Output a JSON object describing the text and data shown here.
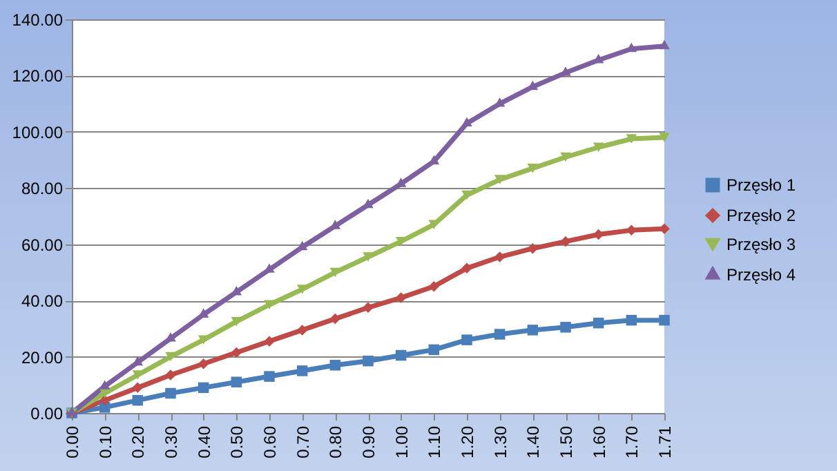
{
  "chart_data": {
    "type": "line",
    "categories": [
      "0.00",
      "0.10",
      "0.20",
      "0.30",
      "0.40",
      "0.50",
      "0.60",
      "0.70",
      "0.80",
      "0.90",
      "1.00",
      "1.10",
      "1.20",
      "1.30",
      "1.40",
      "1.50",
      "1.60",
      "1.70",
      "1.71"
    ],
    "series": [
      {
        "name": "Przęsło 1",
        "color": "#4a7ebb",
        "marker": "square",
        "values": [
          0,
          2,
          4.5,
          7,
          9,
          11,
          13,
          15,
          17,
          18.5,
          20.5,
          22.5,
          26,
          28,
          29.5,
          30.5,
          32,
          33,
          33
        ]
      },
      {
        "name": "Przęsło 2",
        "color": "#be4b48",
        "marker": "diamond",
        "values": [
          0,
          4.5,
          9,
          13.5,
          17.5,
          21.5,
          25.5,
          29.5,
          33.5,
          37.5,
          41,
          45,
          51.5,
          55.5,
          58.5,
          61,
          63.5,
          65,
          65.5
        ]
      },
      {
        "name": "Przęsło 3",
        "color": "#98b954",
        "marker": "triangle-down",
        "values": [
          0,
          7,
          13.5,
          20,
          26,
          32.5,
          38.5,
          44,
          50,
          55.5,
          61,
          67,
          77.5,
          83,
          87,
          91,
          94.5,
          97.5,
          98
        ]
      },
      {
        "name": "Przęsło 4",
        "color": "#7d60a0",
        "marker": "triangle",
        "values": [
          0,
          9.5,
          18,
          26.5,
          35,
          43,
          51,
          59,
          66.5,
          74,
          81.5,
          89.5,
          103,
          110,
          116,
          121,
          125.5,
          129.5,
          130.5
        ]
      }
    ],
    "ylim": [
      0,
      140
    ],
    "yticks": [
      {
        "value": 0,
        "label": "0.00"
      },
      {
        "value": 20,
        "label": "20.00"
      },
      {
        "value": 40,
        "label": "40.00"
      },
      {
        "value": 60,
        "label": "60.00"
      },
      {
        "value": 80,
        "label": "80.00"
      },
      {
        "value": 100,
        "label": "100.00"
      },
      {
        "value": 120,
        "label": "120.00"
      },
      {
        "value": 140,
        "label": "140.00"
      }
    ],
    "grid": "y",
    "legend": "right"
  }
}
